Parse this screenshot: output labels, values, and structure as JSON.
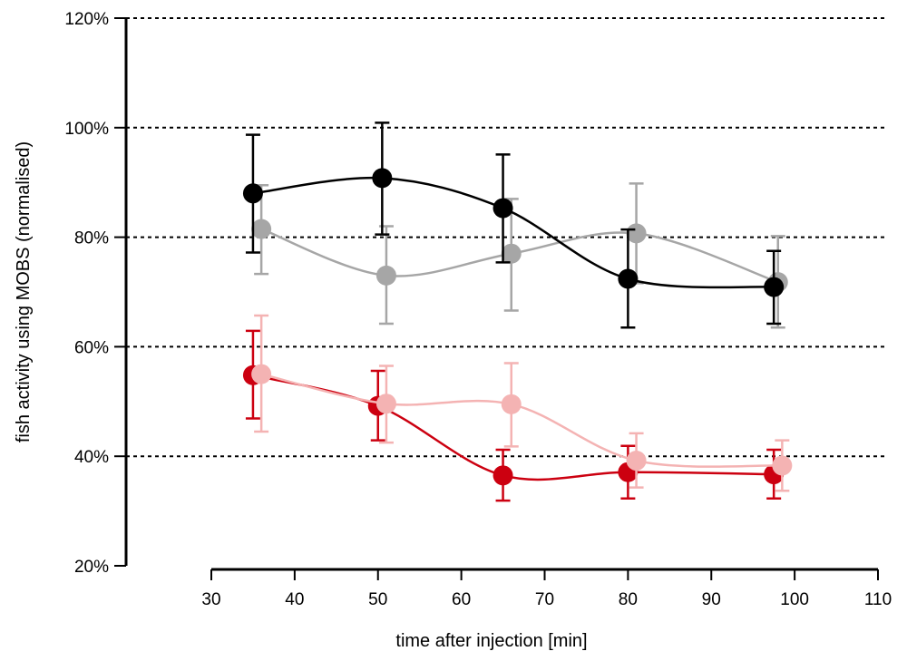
{
  "chart_data": {
    "type": "line",
    "title": "",
    "xlabel": "time after injection [min]",
    "ylabel": "fish activity using MOBS (normalised)",
    "xlim": [
      30,
      110
    ],
    "ylim": [
      20,
      120
    ],
    "xticks": [
      30,
      40,
      50,
      60,
      70,
      80,
      90,
      100,
      110
    ],
    "yticks": [
      20,
      40,
      60,
      80,
      100,
      120
    ],
    "ytick_labels": [
      "20%",
      "40%",
      "60%",
      "80%",
      "100%",
      "120%"
    ],
    "grid": "dotted horizontal lines at 40%, 60%, 80%, 100%, 120%",
    "legend": "none",
    "series": [
      {
        "name": "gray",
        "color": "#a6a6a6",
        "x": [
          36,
          51,
          66,
          81,
          98
        ],
        "y": [
          81.5,
          73,
          77,
          80.7,
          71.8
        ],
        "err_low": [
          73.3,
          64.2,
          66.6,
          71.6,
          63.5
        ],
        "err_high": [
          89.5,
          82,
          87,
          89.8,
          80.2
        ]
      },
      {
        "name": "black",
        "color": "#000000",
        "x": [
          35,
          50.5,
          65,
          80,
          97.5
        ],
        "y": [
          88,
          90.8,
          85.3,
          72.4,
          70.9
        ],
        "err_low": [
          77.2,
          80.5,
          75.4,
          63.5,
          64.2
        ],
        "err_high": [
          98.7,
          100.9,
          95.1,
          81.4,
          77.5
        ]
      },
      {
        "name": "red",
        "color": "#cc0010",
        "x": [
          35,
          50,
          65,
          80,
          97.5
        ],
        "y": [
          54.8,
          49.2,
          36.5,
          37.1,
          36.7
        ],
        "err_low": [
          46.9,
          42.9,
          31.9,
          32.3,
          32.3
        ],
        "err_high": [
          62.9,
          55.6,
          41.2,
          41.9,
          41.2
        ]
      },
      {
        "name": "pink",
        "color": "#f4b3b3",
        "x": [
          36,
          51,
          66,
          81,
          98.5
        ],
        "y": [
          55,
          49.6,
          49.5,
          39.2,
          38.3
        ],
        "err_low": [
          44.5,
          42.5,
          41.8,
          34.3,
          33.7
        ],
        "err_high": [
          65.7,
          56.5,
          57,
          44.2,
          42.9
        ]
      }
    ]
  }
}
